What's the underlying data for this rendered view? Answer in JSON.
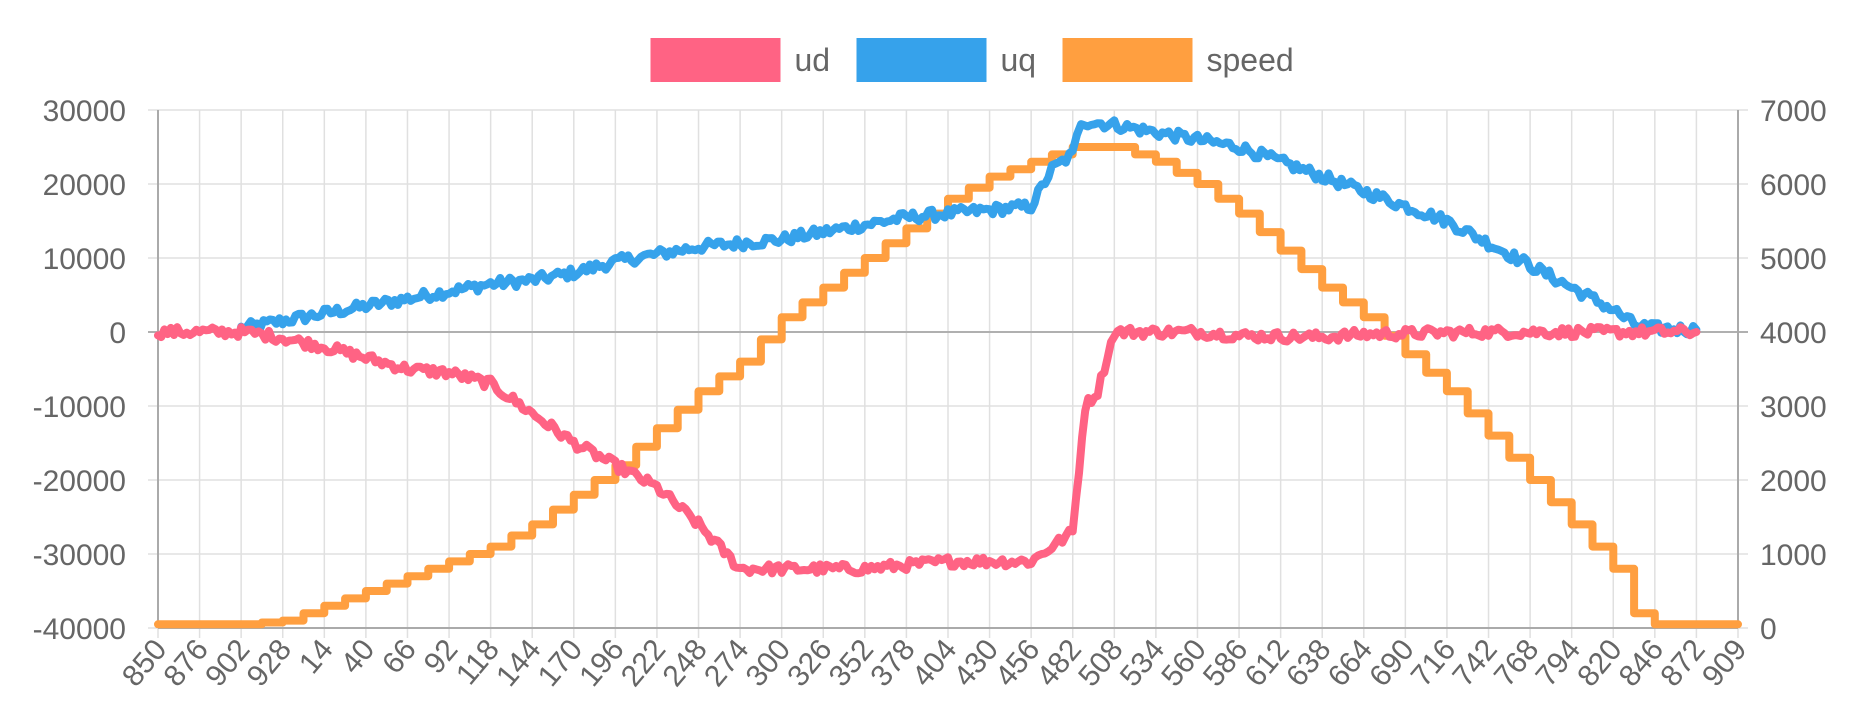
{
  "chart_data": {
    "type": "line",
    "title": "",
    "xlabel": "",
    "ylabel": "",
    "legend_position": "top-center",
    "grid": true,
    "categories": [
      "850",
      "876",
      "902",
      "928",
      "14",
      "40",
      "66",
      "92",
      "118",
      "144",
      "170",
      "196",
      "222",
      "248",
      "274",
      "300",
      "326",
      "352",
      "378",
      "404",
      "430",
      "456",
      "482",
      "508",
      "534",
      "560",
      "586",
      "612",
      "638",
      "664",
      "690",
      "716",
      "742",
      "768",
      "794",
      "820",
      "846",
      "872",
      "909"
    ],
    "y_left": {
      "min": -40000,
      "max": 30000,
      "ticks": [
        "30000",
        "20000",
        "10000",
        "0",
        "-10000",
        "-20000",
        "-30000",
        "-40000"
      ]
    },
    "y_right": {
      "min": 0,
      "max": 7000,
      "ticks": [
        "7000",
        "6000",
        "5000",
        "4000",
        "3000",
        "2000",
        "1000",
        "0"
      ]
    },
    "series": [
      {
        "name": "ud",
        "color": "#ff6384",
        "axis": "left",
        "points": [
          [
            0,
            0
          ],
          [
            1,
            0
          ],
          [
            2,
            0
          ],
          [
            2.5,
            -300
          ],
          [
            3,
            -800
          ],
          [
            4,
            -2000
          ],
          [
            5,
            -3500
          ],
          [
            6,
            -5000
          ],
          [
            7,
            -5500
          ],
          [
            8,
            -7000
          ],
          [
            9,
            -11000
          ],
          [
            10,
            -15000
          ],
          [
            11,
            -18000
          ],
          [
            12,
            -21000
          ],
          [
            13,
            -26000
          ],
          [
            14,
            -32000
          ],
          [
            15,
            -32000
          ],
          [
            16,
            -32000
          ],
          [
            17,
            -32000
          ],
          [
            18,
            -31500
          ],
          [
            19,
            -31000
          ],
          [
            20,
            -31000
          ],
          [
            21,
            -31000
          ],
          [
            21.5,
            -29000
          ],
          [
            22,
            -27000
          ],
          [
            22.3,
            -10000
          ],
          [
            22.6,
            -8000
          ],
          [
            23,
            0
          ],
          [
            24,
            0
          ],
          [
            25,
            0
          ],
          [
            26,
            -500
          ],
          [
            27,
            -600
          ],
          [
            28,
            -700
          ],
          [
            29,
            -300
          ],
          [
            30,
            -200
          ],
          [
            31,
            -100
          ],
          [
            32,
            0
          ],
          [
            33,
            0
          ],
          [
            34,
            0
          ],
          [
            35,
            0
          ],
          [
            36,
            0
          ],
          [
            37,
            0
          ]
        ]
      },
      {
        "name": "uq",
        "color": "#36a2eb",
        "axis": "left",
        "points": [
          [
            2,
            500
          ],
          [
            3,
            1500
          ],
          [
            4,
            2500
          ],
          [
            5,
            3500
          ],
          [
            6,
            4500
          ],
          [
            7,
            5500
          ],
          [
            8,
            6500
          ],
          [
            9,
            7000
          ],
          [
            10,
            8000
          ],
          [
            11,
            9500
          ],
          [
            12,
            10500
          ],
          [
            13,
            11500
          ],
          [
            14,
            12000
          ],
          [
            15,
            12500
          ],
          [
            16,
            13500
          ],
          [
            17,
            14500
          ],
          [
            18,
            15500
          ],
          [
            19,
            16000
          ],
          [
            20,
            16500
          ],
          [
            21,
            17000
          ],
          [
            21.5,
            22000
          ],
          [
            22,
            24000
          ],
          [
            22.2,
            28500
          ],
          [
            23,
            28000
          ],
          [
            24,
            27000
          ],
          [
            25,
            26000
          ],
          [
            26,
            25000
          ],
          [
            27,
            23000
          ],
          [
            28,
            21000
          ],
          [
            29,
            19000
          ],
          [
            30,
            17000
          ],
          [
            31,
            15000
          ],
          [
            32,
            12000
          ],
          [
            33,
            9000
          ],
          [
            34,
            6000
          ],
          [
            35,
            3000
          ],
          [
            35.5,
            1000
          ],
          [
            36,
            500
          ],
          [
            37,
            300
          ]
        ]
      },
      {
        "name": "speed",
        "color": "#ff9f40",
        "axis": "right",
        "points": [
          [
            0,
            50
          ],
          [
            1,
            50
          ],
          [
            2,
            50
          ],
          [
            3,
            100
          ],
          [
            4,
            300
          ],
          [
            5,
            500
          ],
          [
            6,
            700
          ],
          [
            7,
            900
          ],
          [
            8,
            1100
          ],
          [
            9,
            1400
          ],
          [
            10,
            1800
          ],
          [
            11,
            2200
          ],
          [
            12,
            2700
          ],
          [
            13,
            3200
          ],
          [
            14,
            3600
          ],
          [
            15,
            4200
          ],
          [
            16,
            4600
          ],
          [
            17,
            5000
          ],
          [
            18,
            5400
          ],
          [
            19,
            5800
          ],
          [
            20,
            6100
          ],
          [
            21,
            6300
          ],
          [
            22,
            6500
          ],
          [
            23,
            6500
          ],
          [
            24,
            6300
          ],
          [
            25,
            6000
          ],
          [
            26,
            5600
          ],
          [
            27,
            5100
          ],
          [
            28,
            4600
          ],
          [
            29,
            4200
          ],
          [
            30,
            3700
          ],
          [
            31,
            3200
          ],
          [
            32,
            2600
          ],
          [
            33,
            2000
          ],
          [
            34,
            1400
          ],
          [
            35,
            800
          ],
          [
            35.5,
            200
          ],
          [
            36,
            50
          ],
          [
            37,
            50
          ],
          [
            38,
            50
          ]
        ]
      }
    ]
  }
}
